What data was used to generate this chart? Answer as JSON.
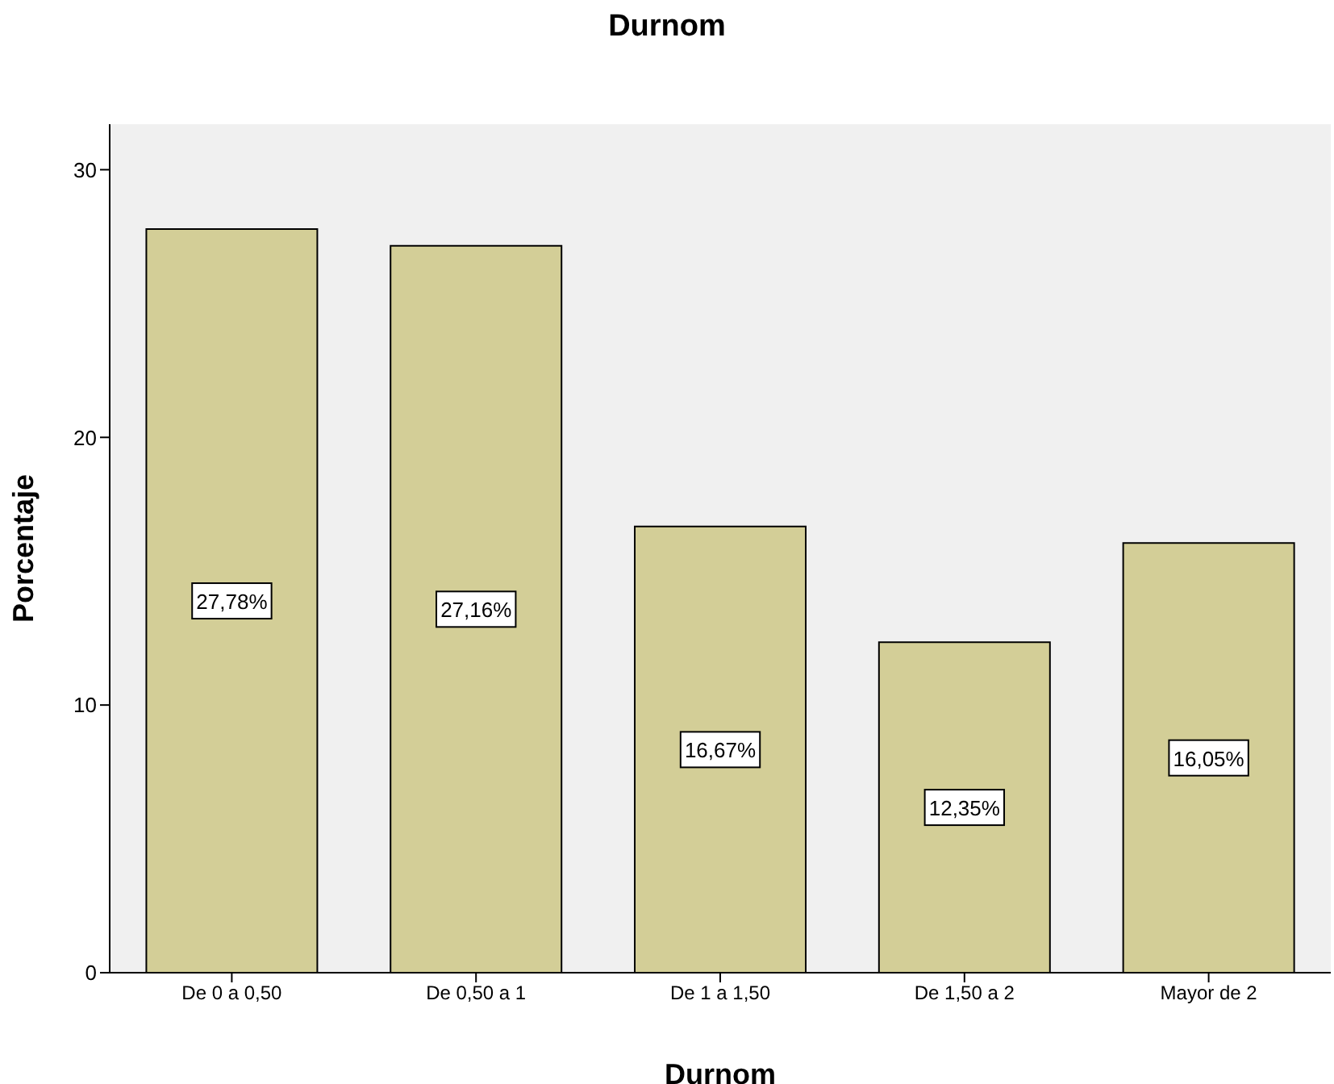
{
  "chart_data": {
    "type": "bar",
    "title": "Durnom",
    "xlabel": "Durnom",
    "ylabel": "Porcentaje",
    "categories": [
      "De 0 a 0,50",
      "De 0,50 a 1",
      "De 1 a 1,50",
      "De 1,50 a 2",
      "Mayor de 2"
    ],
    "values": [
      27.78,
      27.16,
      16.67,
      12.35,
      16.05
    ],
    "value_labels": [
      "27,78%",
      "27,16%",
      "16,67%",
      "12,35%",
      "16,05%"
    ],
    "color": "#d3ce97",
    "ylim": [
      0,
      31.7
    ],
    "yticks": [
      0,
      10,
      20,
      30
    ],
    "grid": false
  }
}
